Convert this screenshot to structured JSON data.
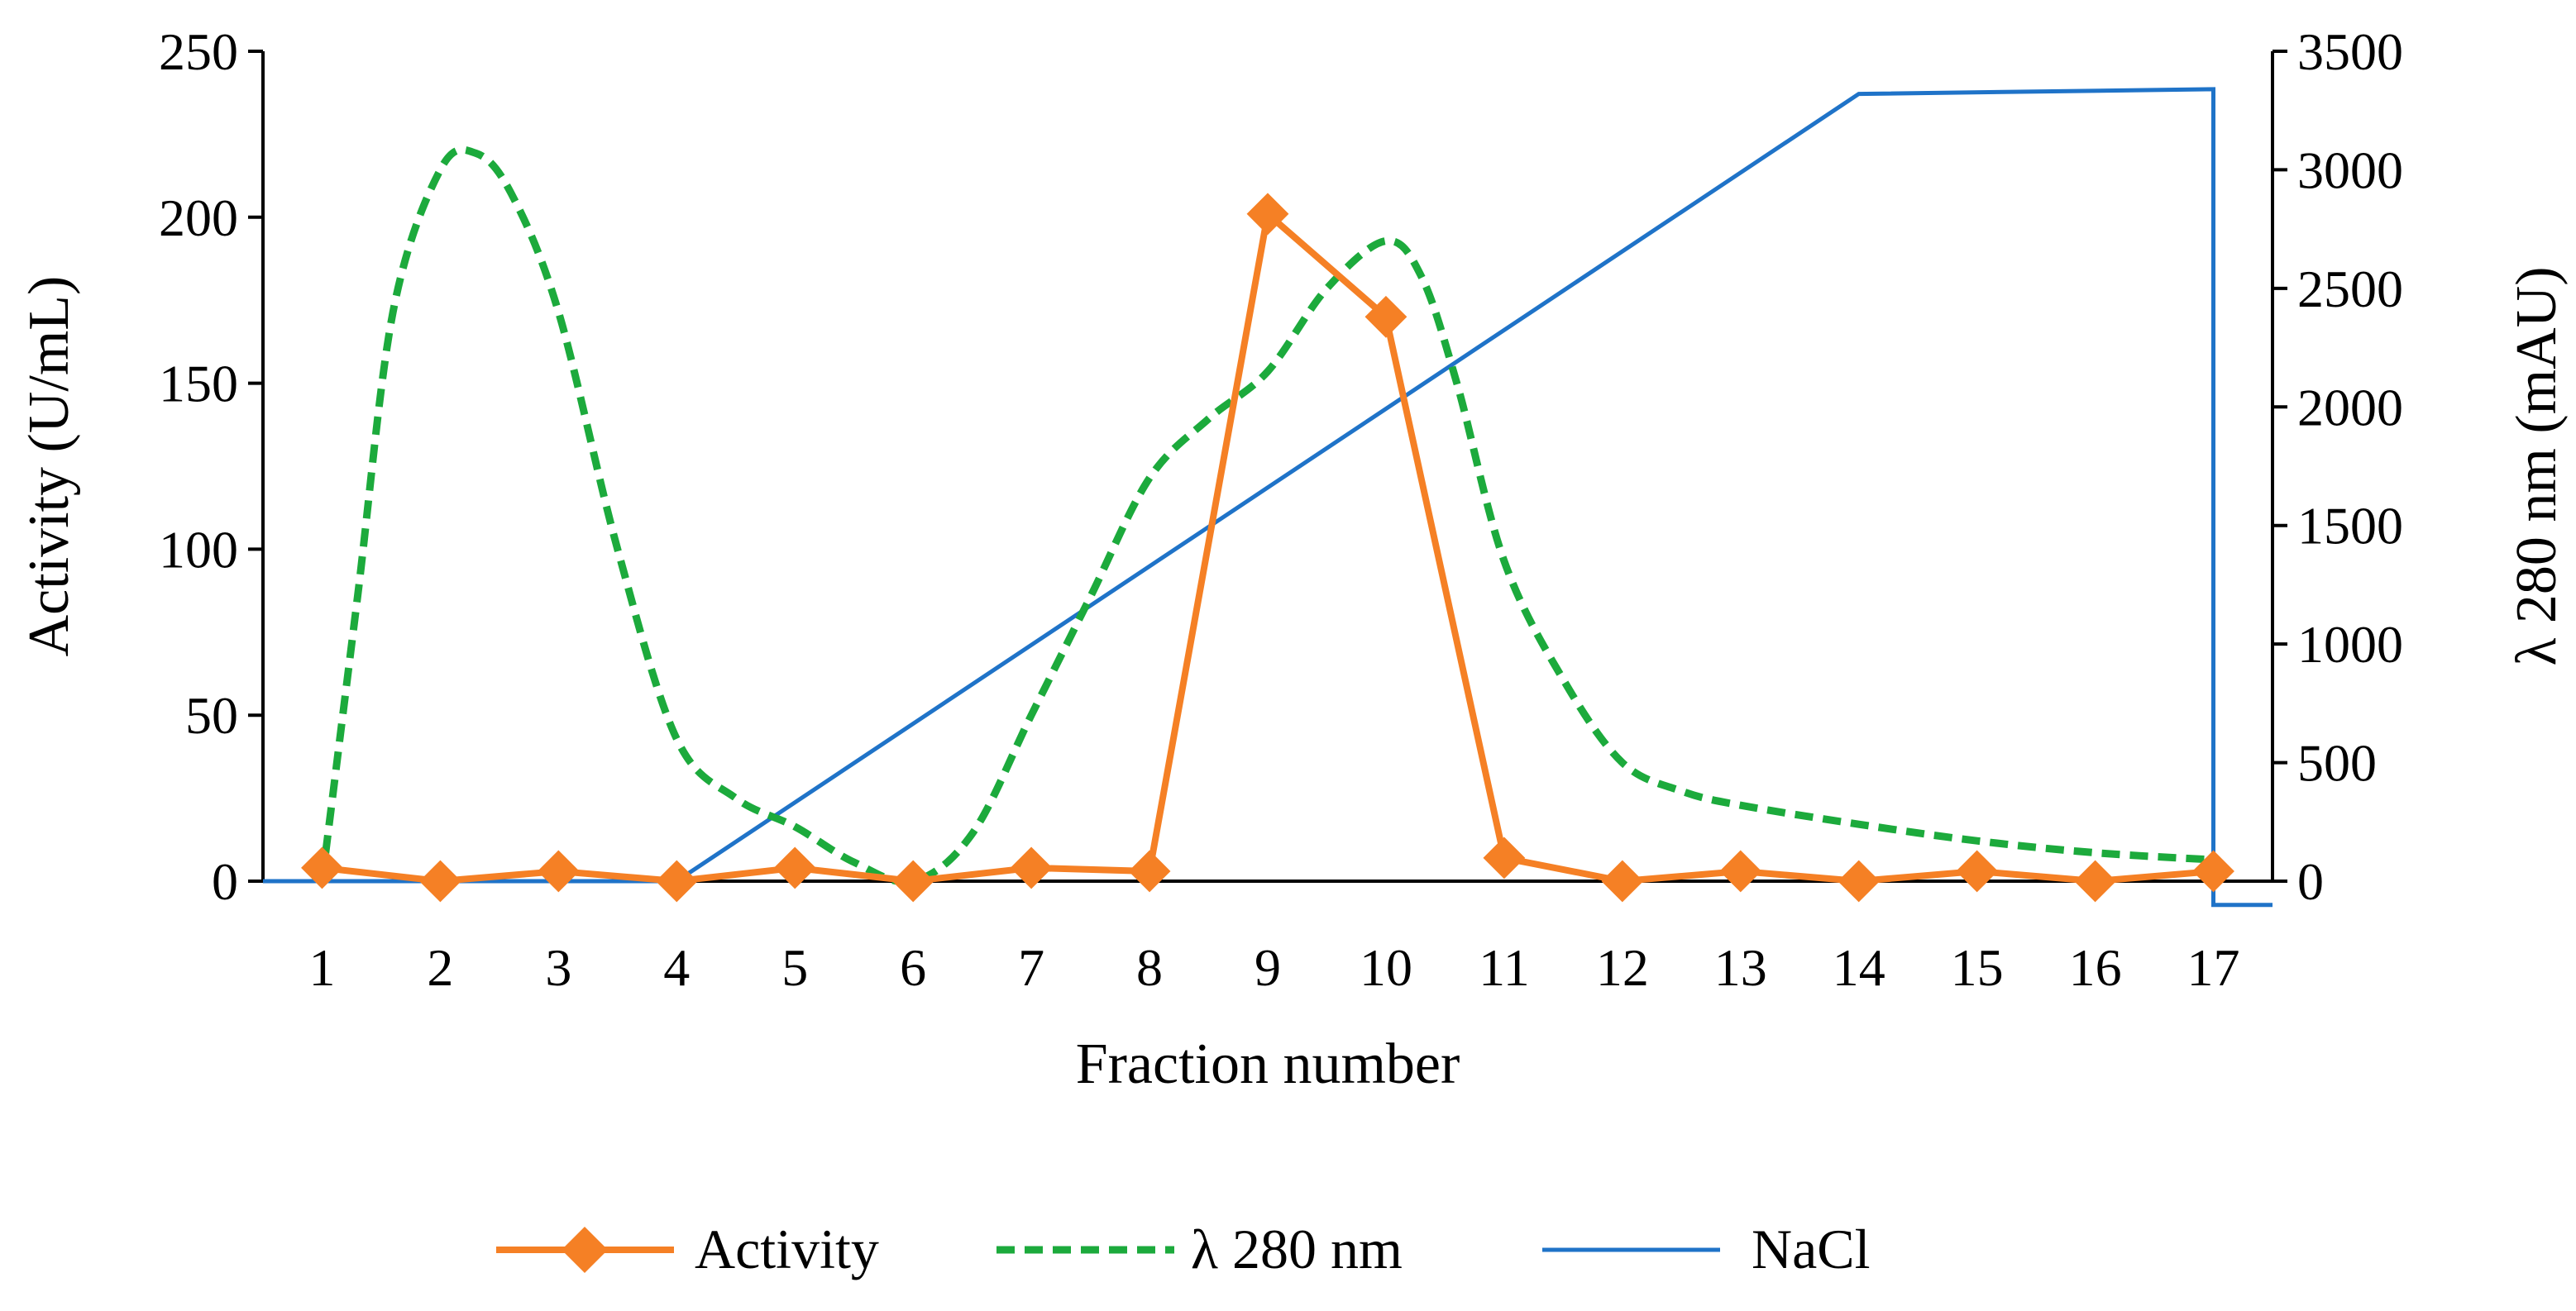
{
  "chart_data": {
    "type": "line",
    "title": "",
    "xlabel": "Fraction number",
    "ylabel": "Activity (U/mL)",
    "y2label": "λ 280 nm (mAU)",
    "categories": [
      "1",
      "2",
      "3",
      "4",
      "5",
      "6",
      "7",
      "8",
      "9",
      "10",
      "11",
      "12",
      "13",
      "14",
      "15",
      "16",
      "17"
    ],
    "ylim": [
      0,
      250
    ],
    "y_ticks": [
      "0",
      "50",
      "100",
      "150",
      "200",
      "250"
    ],
    "y2lim": [
      0,
      3500
    ],
    "y2_ticks": [
      "0",
      "500",
      "1000",
      "1500",
      "2000",
      "2500",
      "3000",
      "3500"
    ],
    "legend_position": "bottom",
    "series": [
      {
        "name": "Activity",
        "axis": "left",
        "style": "solid-diamond",
        "color": "#F58025",
        "x": [
          1,
          2,
          3,
          4,
          5,
          6,
          7,
          8,
          9,
          10,
          11,
          12,
          13,
          14,
          15,
          16,
          17
        ],
        "values": [
          4,
          0,
          3,
          0,
          4,
          0,
          4,
          3,
          201,
          170,
          7,
          0,
          3,
          0,
          3,
          0,
          3
        ]
      },
      {
        "name": "λ 280 nm",
        "axis": "right",
        "style": "dashed",
        "color": "#1CAA3C",
        "x": [
          1,
          1.3,
          1.6,
          2,
          2.3,
          2.6,
          3,
          3.5,
          4,
          4.5,
          5,
          5.5,
          6,
          6.5,
          7,
          7.5,
          8,
          8.5,
          9,
          9.5,
          10,
          10.3,
          10.6,
          11,
          11.5,
          12,
          12.5,
          13,
          14,
          15,
          16,
          17
        ],
        "values": [
          0,
          1200,
          2400,
          3000,
          3070,
          2900,
          2400,
          1400,
          600,
          350,
          230,
          80,
          0,
          200,
          700,
          1200,
          1700,
          1950,
          2150,
          2500,
          2700,
          2550,
          2100,
          1350,
          850,
          500,
          380,
          320,
          240,
          170,
          120,
          90
        ]
      },
      {
        "name": "NaCl",
        "axis": "right",
        "style": "thin",
        "color": "#1F73C8",
        "x": [
          0.5,
          4,
          14,
          17,
          17,
          17.5
        ],
        "values": [
          0,
          0,
          3320,
          3340,
          -100,
          -100
        ]
      }
    ]
  }
}
